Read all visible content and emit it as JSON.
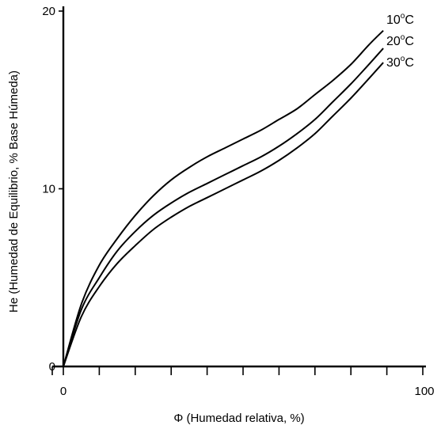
{
  "chart_data": {
    "type": "line",
    "xlabel": "Φ  (Humedad relativa, %)",
    "ylabel": "He (Humedad de Equilibrio, % Base Húmeda)",
    "xlim": [
      0,
      100
    ],
    "ylim": [
      0,
      20
    ],
    "x_ticks": [
      0,
      100
    ],
    "y_ticks": [
      0,
      10,
      20
    ],
    "grid": false,
    "series": [
      {
        "name": "10°C",
        "label_base": "10",
        "label_sup": "o",
        "label_unit": "C",
        "x": [
          0,
          5,
          10,
          15,
          20,
          25,
          30,
          35,
          40,
          45,
          50,
          55,
          60,
          65,
          70,
          75,
          80,
          85,
          89
        ],
        "y": [
          0,
          3.5,
          5.7,
          7.2,
          8.5,
          9.6,
          10.5,
          11.2,
          11.8,
          12.3,
          12.8,
          13.3,
          13.9,
          14.5,
          15.3,
          16.1,
          17.0,
          18.1,
          18.9
        ]
      },
      {
        "name": "20°C",
        "label_base": "20",
        "label_sup": "o",
        "label_unit": "C",
        "x": [
          0,
          5,
          10,
          15,
          20,
          25,
          30,
          35,
          40,
          45,
          50,
          55,
          60,
          65,
          70,
          75,
          80,
          85,
          89
        ],
        "y": [
          0,
          3.2,
          5.0,
          6.5,
          7.6,
          8.5,
          9.2,
          9.8,
          10.3,
          10.8,
          11.3,
          11.8,
          12.4,
          13.1,
          13.9,
          14.9,
          15.9,
          17.0,
          17.9
        ]
      },
      {
        "name": "30°C",
        "label_base": "30",
        "label_sup": "o",
        "label_unit": "C",
        "x": [
          0,
          5,
          10,
          15,
          20,
          25,
          30,
          35,
          40,
          45,
          50,
          55,
          60,
          65,
          70,
          75,
          80,
          85,
          89
        ],
        "y": [
          0,
          2.8,
          4.5,
          5.8,
          6.8,
          7.7,
          8.4,
          9.0,
          9.5,
          10.0,
          10.5,
          11.0,
          11.6,
          12.3,
          13.1,
          14.1,
          15.1,
          16.2,
          17.1
        ]
      }
    ]
  }
}
